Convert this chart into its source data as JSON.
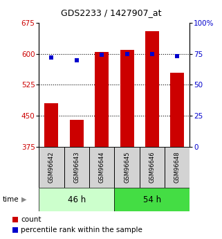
{
  "title": "GDS2233 / 1427907_at",
  "samples": [
    "GSM96642",
    "GSM96643",
    "GSM96644",
    "GSM96645",
    "GSM96646",
    "GSM96648"
  ],
  "count_values": [
    480,
    440,
    605,
    610,
    655,
    555
  ],
  "percentile_values": [
    72,
    70,
    74,
    75,
    75,
    73
  ],
  "ylim_left": [
    375,
    675
  ],
  "ylim_right": [
    0,
    100
  ],
  "yticks_left": [
    375,
    450,
    525,
    600,
    675
  ],
  "yticks_right": [
    0,
    25,
    50,
    75,
    100
  ],
  "bar_color": "#cc0000",
  "dot_color": "#0000cc",
  "group1_label": "46 h",
  "group2_label": "54 h",
  "group1_color": "#ccffcc",
  "group2_color": "#44dd44",
  "tick_label_color_left": "#cc0000",
  "tick_label_color_right": "#0000cc",
  "legend_count_label": "count",
  "legend_pct_label": "percentile rank within the sample",
  "bar_width": 0.55,
  "dot_size": 25
}
